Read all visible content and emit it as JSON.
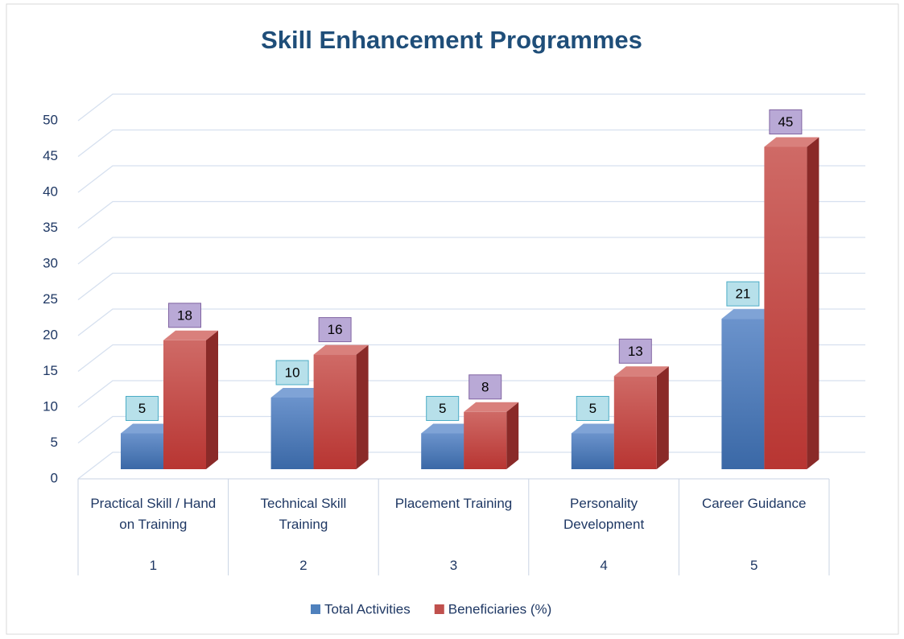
{
  "chart_data": {
    "type": "bar3d",
    "title": "Skill Enhancement Programmes",
    "categories": [
      "Practical  Skill / Hand on Training",
      "Technical Skill Training",
      "Placement Training",
      "Personality Development",
      "Career Guidance"
    ],
    "category_ids": [
      "1",
      "2",
      "3",
      "4",
      "5"
    ],
    "series": [
      {
        "name": "Total Activities",
        "color": "#4f81bd",
        "values": [
          5,
          10,
          5,
          5,
          21
        ]
      },
      {
        "name": "Beneficiaries (%)",
        "color": "#c0504d",
        "values": [
          18,
          16,
          8,
          13,
          45
        ]
      }
    ],
    "ylim": [
      0,
      50
    ],
    "yticks": [
      0,
      5,
      10,
      15,
      20,
      25,
      30,
      35,
      40,
      45,
      50
    ],
    "grid": true,
    "legend": "bottom"
  }
}
